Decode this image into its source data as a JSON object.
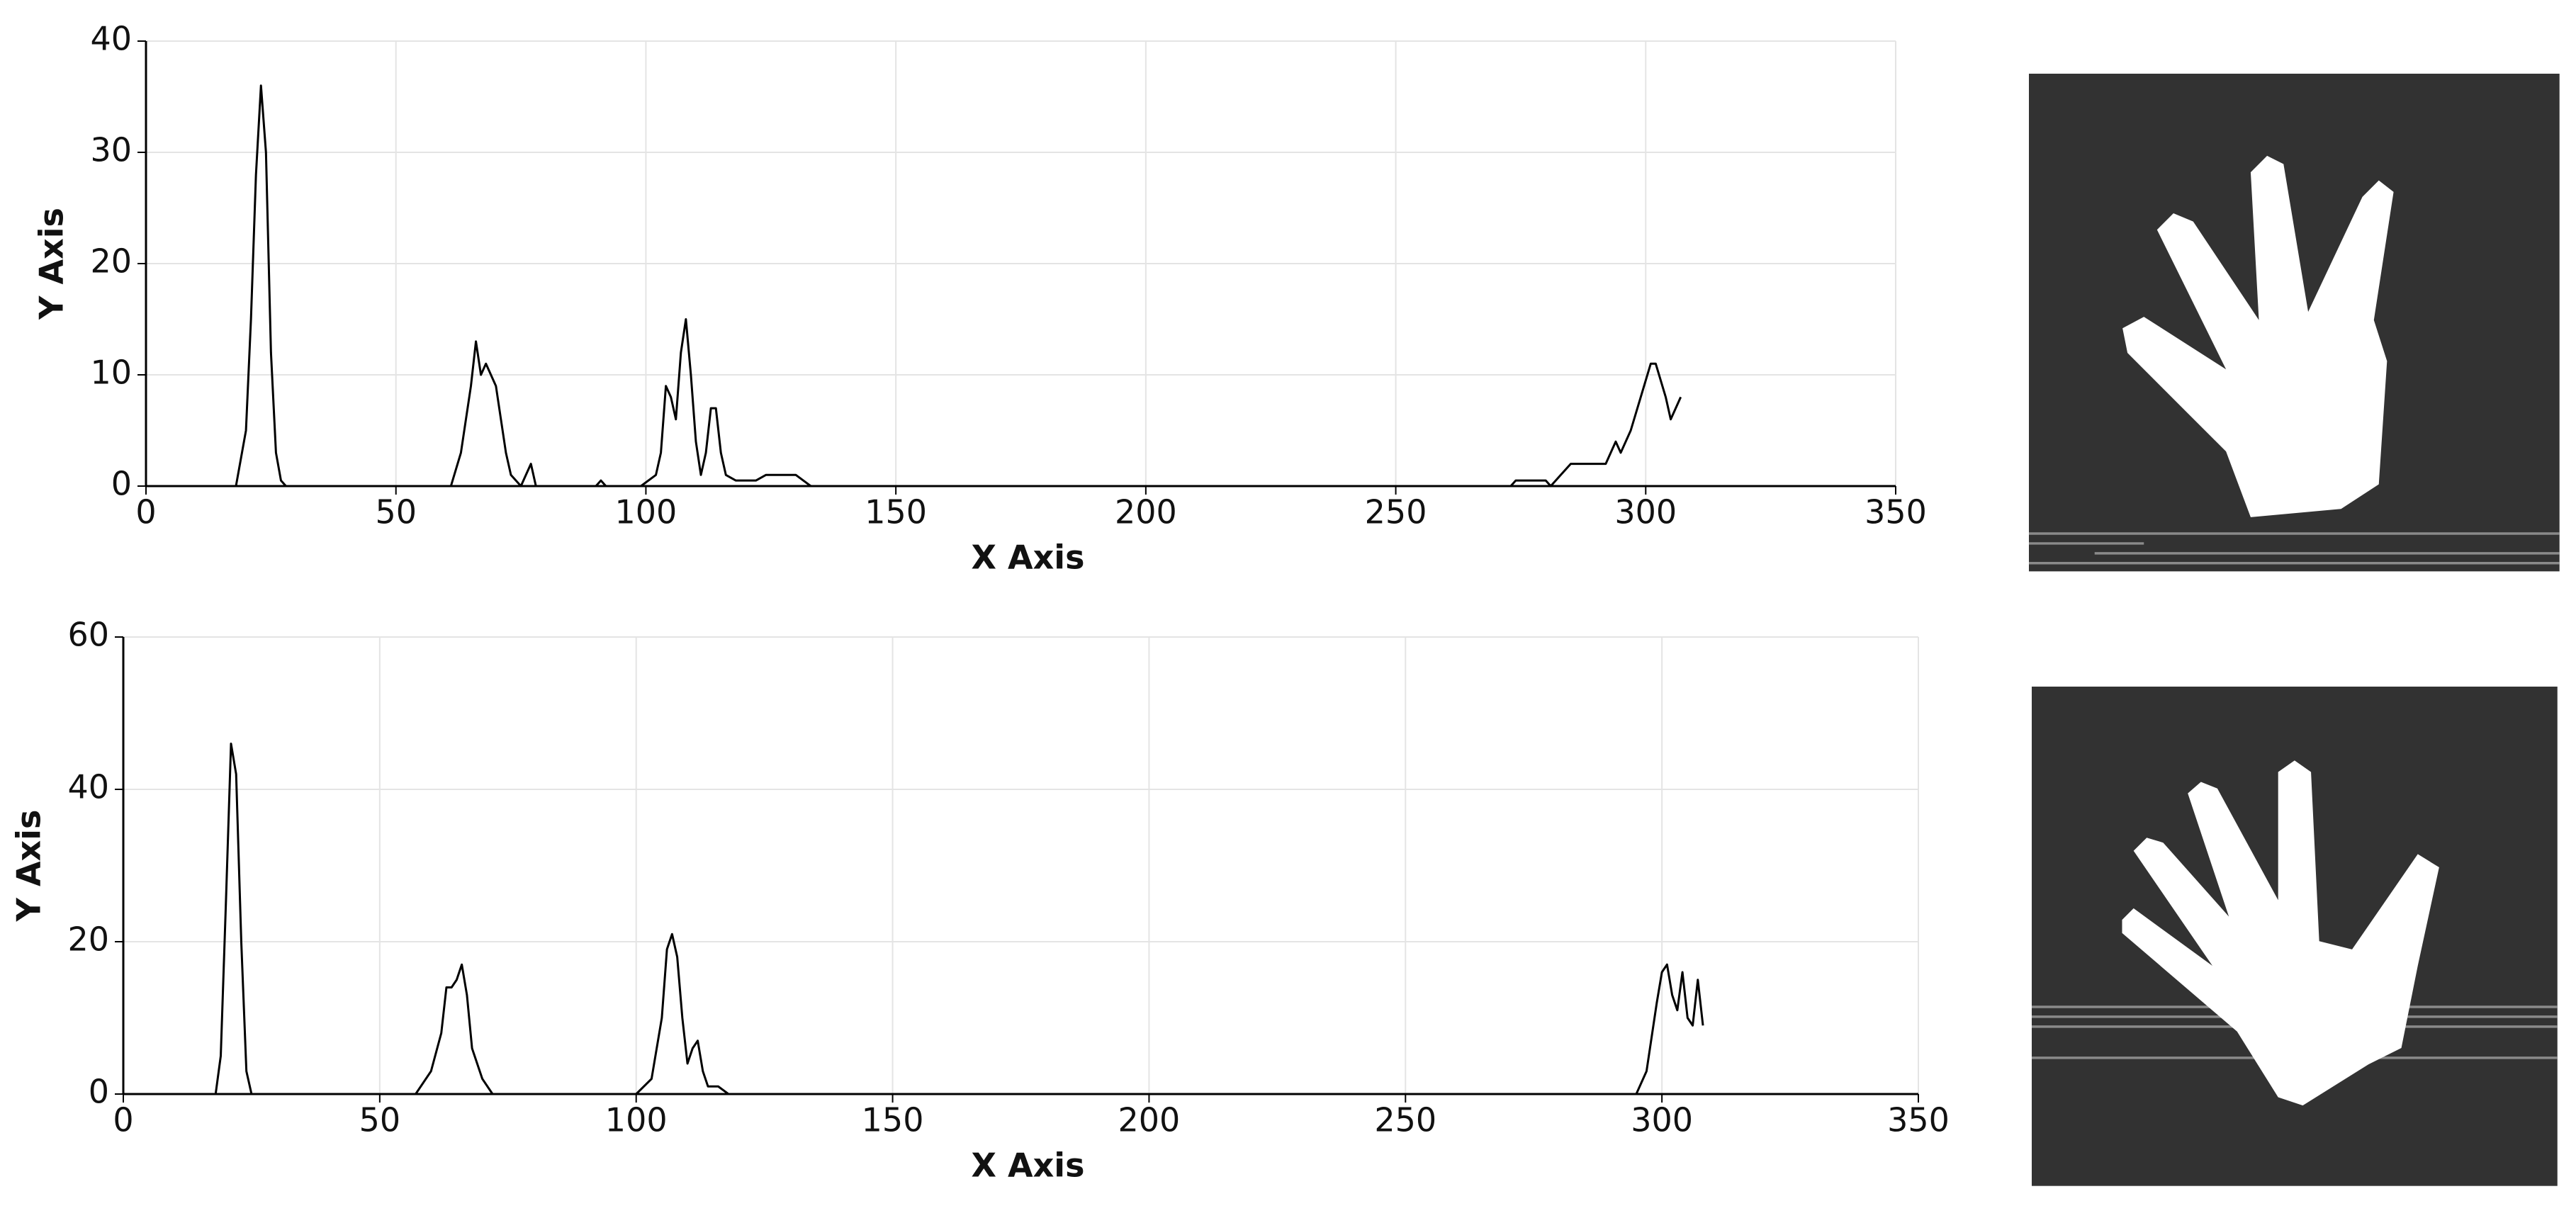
{
  "chart_data": [
    {
      "type": "line",
      "xlabel": "X Axis",
      "ylabel": "Y Axis",
      "xlim": [
        0,
        350
      ],
      "ylim": [
        0,
        40
      ],
      "xticks": [
        0,
        50,
        100,
        150,
        200,
        250,
        300,
        350
      ],
      "yticks": [
        0,
        10,
        20,
        30,
        40
      ],
      "grid": true,
      "color": "#000000",
      "x": [
        0,
        18,
        20,
        21,
        22,
        23,
        24,
        25,
        26,
        27,
        28,
        61,
        63,
        65,
        66,
        67,
        68,
        69,
        70,
        71,
        72,
        73,
        75,
        76,
        77,
        78,
        90,
        91,
        92,
        99,
        102,
        103,
        104,
        105,
        106,
        107,
        108,
        109,
        110,
        111,
        112,
        113,
        114,
        115,
        116,
        118,
        122,
        124,
        130,
        133,
        273,
        274,
        280,
        281,
        283,
        285,
        288,
        292,
        294,
        295,
        297,
        299,
        301,
        302,
        304,
        305,
        306,
        307
      ],
      "values": [
        0,
        0,
        5,
        15,
        28,
        36,
        30,
        12,
        3,
        0.5,
        0,
        0,
        3,
        9,
        13,
        10,
        11,
        10,
        9,
        6,
        3,
        1,
        0,
        1,
        2,
        0,
        0,
        0.5,
        0,
        0,
        1,
        3,
        9,
        8,
        6,
        12,
        15,
        10,
        4,
        1,
        3,
        7,
        7,
        3,
        1,
        0.5,
        0.5,
        1,
        1,
        0,
        0,
        0.5,
        0.5,
        0,
        1,
        2,
        2,
        2,
        4,
        3,
        5,
        8,
        11,
        11,
        8,
        6,
        7,
        8
      ]
    },
    {
      "type": "line",
      "xlabel": "X Axis",
      "ylabel": "Y Axis",
      "xlim": [
        0,
        350
      ],
      "ylim": [
        0,
        60
      ],
      "xticks": [
        0,
        50,
        100,
        150,
        200,
        250,
        300,
        350
      ],
      "yticks": [
        0,
        20,
        40,
        60
      ],
      "grid": true,
      "color": "#000000",
      "x": [
        0,
        18,
        19,
        20,
        21,
        22,
        23,
        24,
        25,
        57,
        60,
        62,
        63,
        64,
        65,
        66,
        67,
        68,
        70,
        72,
        100,
        103,
        105,
        106,
        107,
        108,
        109,
        110,
        111,
        112,
        113,
        114,
        116,
        118,
        295,
        297,
        299,
        300,
        301,
        302,
        303,
        304,
        305,
        306,
        307,
        308
      ],
      "values": [
        0,
        0,
        5,
        25,
        46,
        42,
        20,
        3,
        0,
        0,
        3,
        8,
        14,
        14,
        15,
        17,
        13,
        6,
        2,
        0,
        0,
        2,
        10,
        19,
        21,
        18,
        10,
        4,
        6,
        7,
        3,
        1,
        1,
        0,
        0,
        3,
        12,
        16,
        17,
        13,
        11,
        16,
        10,
        9,
        15,
        9
      ]
    }
  ]
}
